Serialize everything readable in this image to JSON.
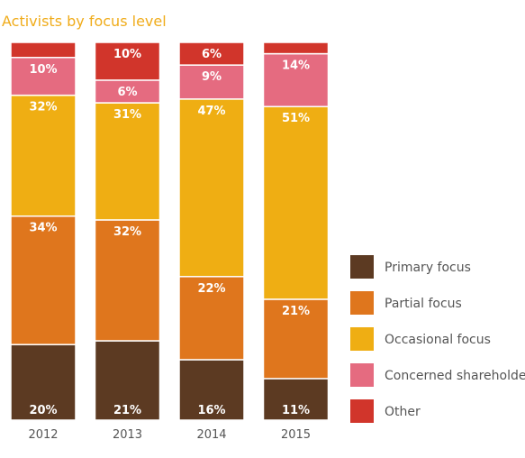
{
  "chart_data": {
    "type": "bar",
    "stacked": true,
    "percent_stacked": true,
    "title": "Activists by focus level",
    "categories": [
      "2012",
      "2013",
      "2014",
      "2015"
    ],
    "series": [
      {
        "name": "Primary focus",
        "color": "#5c3a22",
        "values": [
          20,
          21,
          16,
          11
        ],
        "labels": [
          "20%",
          "21%",
          "16%",
          "11%"
        ]
      },
      {
        "name": "Partial focus",
        "color": "#df761d",
        "values": [
          34,
          32,
          22,
          21
        ],
        "labels": [
          "34%",
          "32%",
          "22%",
          "21%"
        ]
      },
      {
        "name": "Occasional focus",
        "color": "#efae13",
        "values": [
          32,
          31,
          47,
          51
        ],
        "labels": [
          "32%",
          "31%",
          "47%",
          "51%"
        ]
      },
      {
        "name": "Concerned shareholder",
        "color": "#e56b80",
        "values": [
          10,
          6,
          9,
          14
        ],
        "labels": [
          "10%",
          "6%",
          "9%",
          "14%"
        ]
      },
      {
        "name": "Other",
        "color": "#d1352b",
        "values": [
          4,
          10,
          6,
          3
        ],
        "labels": [
          "",
          "10%",
          "6%",
          ""
        ]
      }
    ],
    "legend_position": "right",
    "grid": false
  }
}
